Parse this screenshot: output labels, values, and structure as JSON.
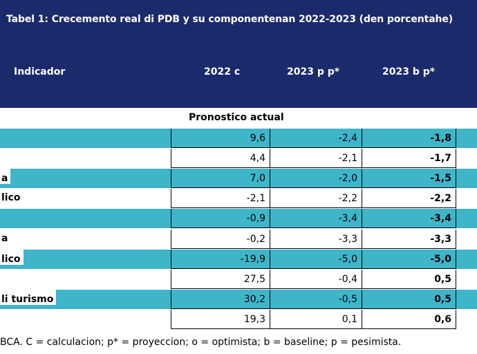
{
  "title": "Tabel 1: Crecemento real di PDB y su componentenan 2022-2023 (den porcentahe)",
  "columns": [
    "Indicador",
    "2022 c",
    "2023 p p*",
    "2023 b p*"
  ],
  "section": "Pronostico actual",
  "rows": [
    {
      "label": "",
      "c1": "9,6",
      "c2": "-2,4",
      "c3": "-1,8"
    },
    {
      "label": "",
      "c1": "4,4",
      "c2": "-2,1",
      "c3": "-1,7"
    },
    {
      "label": "a",
      "c1": "7,0",
      "c2": "-2,0",
      "c3": "-1,5"
    },
    {
      "label": "lico",
      "c1": "-2,1",
      "c2": "-2,2",
      "c3": "-2,2"
    },
    {
      "label": "",
      "c1": "-0,9",
      "c2": "-3,4",
      "c3": "-3,4"
    },
    {
      "label": "a",
      "c1": "-0,2",
      "c2": "-3,3",
      "c3": "-3,3"
    },
    {
      "label": "lico",
      "c1": "-19,9",
      "c2": "-5,0",
      "c3": "-5,0"
    },
    {
      "label": "",
      "c1": "27,5",
      "c2": "-0,4",
      "c3": "0,5"
    },
    {
      "label": "li turismo",
      "c1": "30,2",
      "c2": "-0,5",
      "c3": "0,5"
    },
    {
      "label": "",
      "c1": "19,3",
      "c2": "0,1",
      "c3": "0,6"
    }
  ],
  "footnote": "BCA. C = calculacion; p* = proyeccion; o = optimista; b = baseline; p = pesimista.",
  "colors": {
    "header_bg": "#1b2a6b",
    "teal_row": "#3fb5c9"
  }
}
